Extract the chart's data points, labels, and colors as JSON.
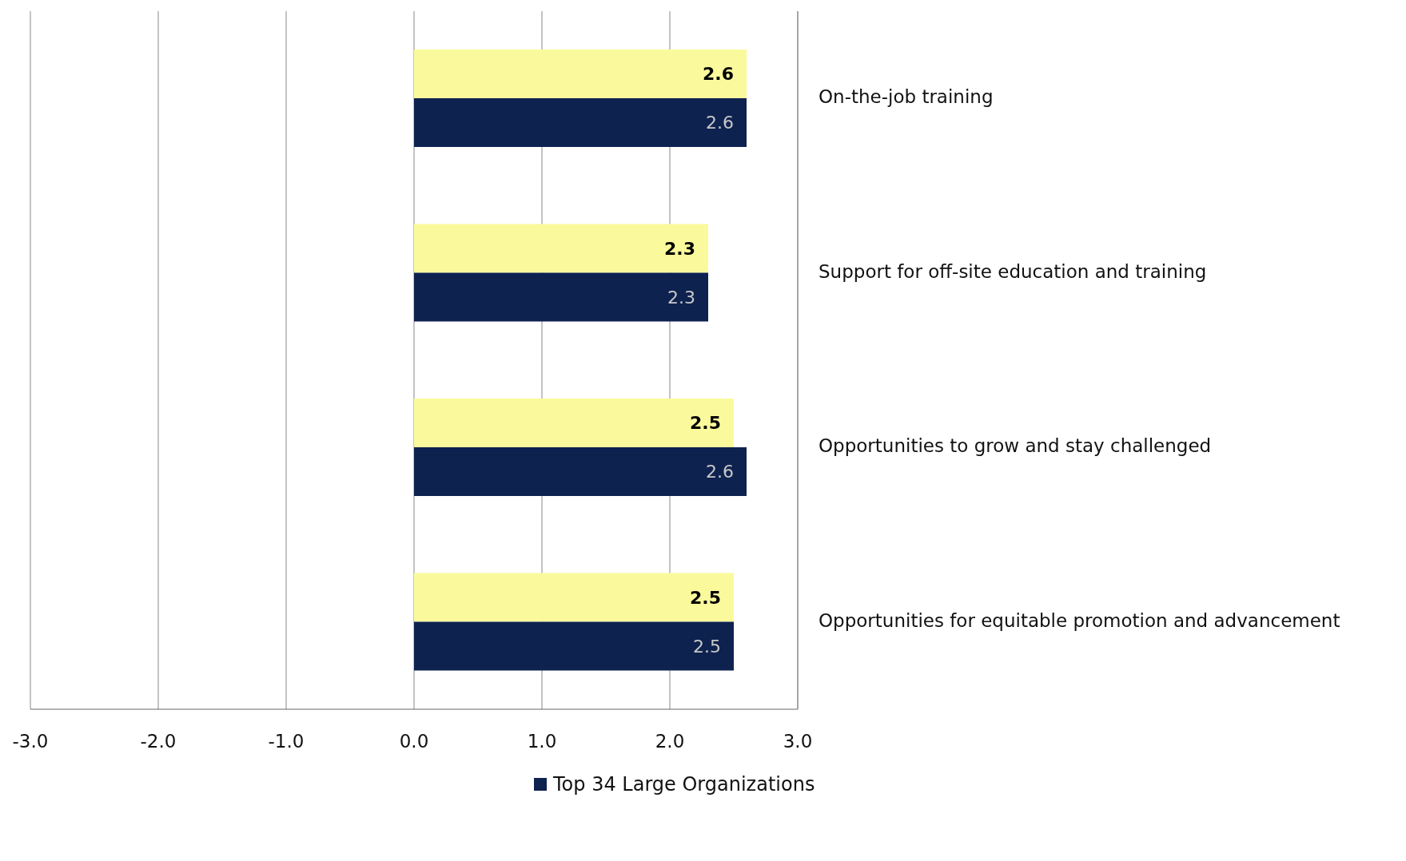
{
  "chart_data": {
    "type": "bar",
    "orientation": "horizontal",
    "categories": [
      "On-the-job training",
      "Support for off-site education and training",
      "Opportunities to grow and stay challenged",
      "Opportunities for equitable promotion and advancement"
    ],
    "series": [
      {
        "color": "#fafa9c",
        "values": [
          2.6,
          2.3,
          2.5,
          2.5
        ]
      },
      {
        "name": "Top 34 Large Organizations",
        "color": "#0e2250",
        "values": [
          2.6,
          2.3,
          2.6,
          2.5
        ]
      }
    ],
    "xlim": [
      -3,
      3
    ],
    "xticks": [
      {
        "value": -3,
        "label": "-3.0"
      },
      {
        "value": -2,
        "label": "-2.0"
      },
      {
        "value": -1,
        "label": "-1.0"
      },
      {
        "value": 0,
        "label": "0.0"
      },
      {
        "value": 1,
        "label": "1.0"
      },
      {
        "value": 2,
        "label": "2.0"
      },
      {
        "value": 3,
        "label": "3.0"
      }
    ],
    "grid": "x",
    "data_labels": true,
    "legend": "bottom"
  }
}
